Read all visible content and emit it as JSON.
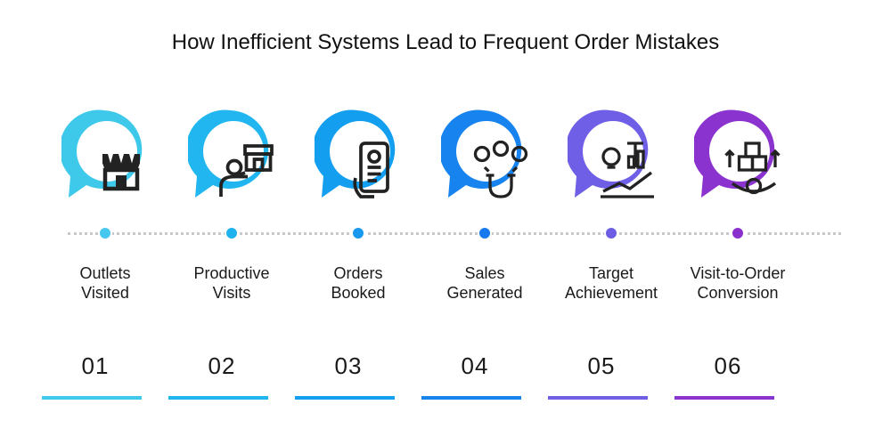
{
  "title": "How Inefficient Systems Lead to Frequent Order Mistakes",
  "steps": [
    {
      "label": "Outlets\nVisited",
      "number": "01",
      "color": "#3ec9ea",
      "dot_color": "#46c8ee",
      "icon": "storefront-icon"
    },
    {
      "label": "Productive\nVisits",
      "number": "02",
      "color": "#22b6f0",
      "dot_color": "#1fb3ee",
      "icon": "salesperson-shop-icon"
    },
    {
      "label": "Orders\nBooked",
      "number": "03",
      "color": "#149ef0",
      "dot_color": "#1898ef",
      "icon": "mobile-order-icon"
    },
    {
      "label": "Sales\nGenerated",
      "number": "04",
      "color": "#1783ee",
      "dot_color": "#1679ee",
      "icon": "customer-magnet-icon"
    },
    {
      "label": "Target\nAchievement",
      "number": "05",
      "color": "#6f5fe6",
      "dot_color": "#6c5ee4",
      "icon": "growth-idea-icon"
    },
    {
      "label": "Visit-to-Order\nConversion",
      "number": "06",
      "color": "#8b33cf",
      "dot_color": "#8a30cc",
      "icon": "conversion-gear-icon"
    }
  ]
}
